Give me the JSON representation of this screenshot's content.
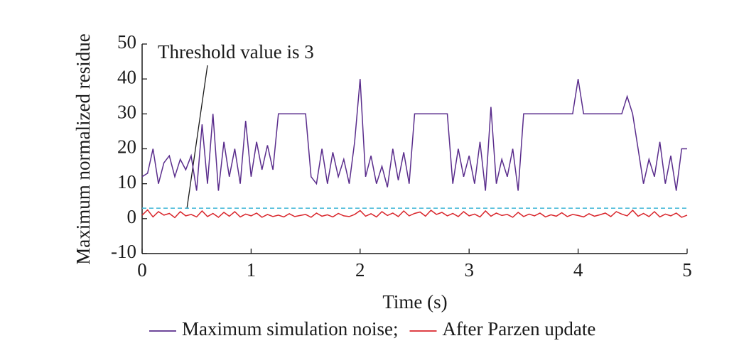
{
  "chart_data": {
    "type": "line",
    "xlabel": "Time (s)",
    "ylabel": "Maximum normalized residue",
    "annotation": "Threshold value is 3",
    "threshold": 3,
    "threshold_color": "#3fb6d6",
    "xlim": [
      0,
      5
    ],
    "xticks": [
      0,
      1,
      2,
      3,
      4,
      5
    ],
    "ylim": [
      -10,
      50
    ],
    "yticks": [
      -10,
      0,
      10,
      20,
      30,
      40,
      50
    ],
    "x": [
      0,
      0.05,
      0.1,
      0.15,
      0.2,
      0.25,
      0.3,
      0.35,
      0.4,
      0.45,
      0.5,
      0.55,
      0.6,
      0.65,
      0.7,
      0.75,
      0.8,
      0.85,
      0.9,
      0.95,
      1,
      1.05,
      1.1,
      1.15,
      1.2,
      1.25,
      1.3,
      1.35,
      1.4,
      1.45,
      1.5,
      1.55,
      1.6,
      1.65,
      1.7,
      1.75,
      1.8,
      1.85,
      1.9,
      1.95,
      2,
      2.05,
      2.1,
      2.15,
      2.2,
      2.25,
      2.3,
      2.35,
      2.4,
      2.45,
      2.5,
      2.55,
      2.6,
      2.65,
      2.7,
      2.75,
      2.8,
      2.85,
      2.9,
      2.95,
      3,
      3.05,
      3.1,
      3.15,
      3.2,
      3.25,
      3.3,
      3.35,
      3.4,
      3.45,
      3.5,
      3.55,
      3.6,
      3.65,
      3.7,
      3.75,
      3.8,
      3.85,
      3.9,
      3.95,
      4,
      4.05,
      4.1,
      4.15,
      4.2,
      4.25,
      4.3,
      4.35,
      4.4,
      4.45,
      4.5,
      4.55,
      4.6,
      4.65,
      4.7,
      4.75,
      4.8,
      4.85,
      4.9,
      4.95,
      5
    ],
    "series": [
      {
        "name": "Maximum simulation noise;",
        "color": "#5a2d8c",
        "values": [
          12,
          13,
          20,
          10,
          16,
          18,
          12,
          17,
          14,
          18,
          8,
          27,
          10,
          30,
          8,
          22,
          12,
          20,
          10,
          28,
          12,
          22,
          14,
          21,
          14,
          30,
          30,
          30,
          30,
          30,
          30,
          12,
          10,
          20,
          10,
          19,
          12,
          17,
          10,
          22,
          40,
          12,
          18,
          10,
          15,
          9,
          20,
          11,
          19,
          10,
          30,
          30,
          30,
          30,
          30,
          30,
          30,
          10,
          20,
          12,
          18,
          10,
          22,
          8,
          32,
          10,
          17,
          12,
          20,
          8,
          30,
          30,
          30,
          30,
          30,
          30,
          30,
          30,
          30,
          30,
          40,
          30,
          30,
          30,
          30,
          30,
          30,
          30,
          30,
          35,
          30,
          20,
          10,
          17,
          12,
          22,
          10,
          18,
          8,
          20,
          20
        ]
      },
      {
        "name": "After Parzen update",
        "color": "#d9252b",
        "values": [
          1,
          2.5,
          0.5,
          2,
          1,
          1.5,
          0.3,
          2,
          0.8,
          1.2,
          0.5,
          2.2,
          0.6,
          1.5,
          0.4,
          1.8,
          0.7,
          2,
          0.5,
          1.3,
          0.8,
          1.6,
          0.4,
          1.2,
          0.6,
          1,
          0.5,
          1.4,
          0.6,
          0.9,
          1.2,
          0.4,
          1.6,
          0.7,
          1.1,
          0.5,
          1.5,
          0.8,
          0.6,
          1.2,
          2.3,
          0.7,
          1.4,
          0.5,
          2,
          0.9,
          1.6,
          0.6,
          2.2,
          0.8,
          1.5,
          1.9,
          0.7,
          2.4,
          1.2,
          1.8,
          0.8,
          1.5,
          0.6,
          2,
          0.8,
          1.3,
          0.5,
          2.2,
          0.7,
          1.6,
          0.9,
          1.2,
          0.4,
          1.8,
          0.6,
          1.3,
          0.8,
          1.6,
          0.5,
          1.1,
          0.7,
          1.7,
          0.6,
          1.2,
          0.9,
          0.5,
          1.4,
          0.7,
          1.1,
          1.6,
          0.6,
          2,
          1.3,
          0.8,
          2.4,
          0.7,
          1.5,
          0.6,
          2,
          0.5,
          1.3,
          0.8,
          1.6,
          0.4,
          1
        ]
      }
    ]
  }
}
